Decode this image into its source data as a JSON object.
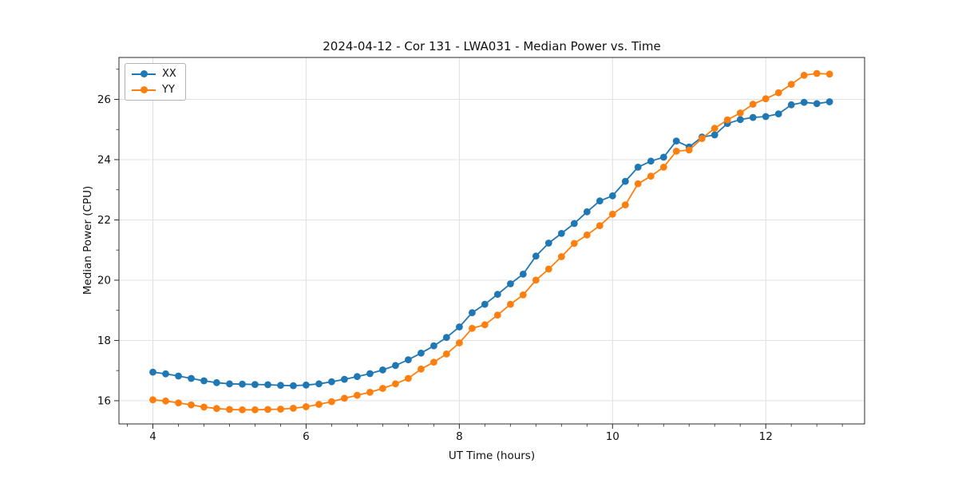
{
  "chart_data": {
    "type": "line",
    "title": "2024-04-12 - Cor 131 - LWA031 - Median Power vs. Time",
    "xlabel": "UT Time (hours)",
    "ylabel": "Median Power (CPU)",
    "xlim": [
      3.557,
      13.29
    ],
    "ylim": [
      15.23,
      27.39
    ],
    "x_major_ticks": [
      4,
      6,
      8,
      10,
      12
    ],
    "y_major_ticks": [
      16,
      18,
      20,
      22,
      24,
      26
    ],
    "x_minor_step": 0.33333,
    "y_minor_step": 1.0,
    "grid": true,
    "grid_color": "#e0e0e0",
    "spine_color": "#2b2b2b",
    "legend_position": "upper left",
    "x": [
      4.0,
      4.167,
      4.333,
      4.5,
      4.667,
      4.833,
      5.0,
      5.167,
      5.333,
      5.5,
      5.667,
      5.833,
      6.0,
      6.167,
      6.333,
      6.5,
      6.667,
      6.833,
      7.0,
      7.167,
      7.333,
      7.5,
      7.667,
      7.833,
      8.0,
      8.167,
      8.333,
      8.5,
      8.667,
      8.833,
      9.0,
      9.167,
      9.333,
      9.5,
      9.667,
      9.833,
      10.0,
      10.167,
      10.333,
      10.5,
      10.667,
      10.833,
      11.0,
      11.167,
      11.333,
      11.5,
      11.667,
      11.833,
      12.0,
      12.167,
      12.333,
      12.5,
      12.667,
      12.833
    ],
    "series": [
      {
        "name": "XX",
        "color": "#1f77b4",
        "values": [
          16.95,
          16.89,
          16.82,
          16.74,
          16.66,
          16.6,
          16.56,
          16.55,
          16.54,
          16.53,
          16.51,
          16.5,
          16.52,
          16.56,
          16.63,
          16.71,
          16.8,
          16.9,
          17.02,
          17.17,
          17.36,
          17.58,
          17.82,
          18.1,
          18.45,
          18.92,
          19.2,
          19.53,
          19.88,
          20.2,
          20.8,
          21.23,
          21.55,
          21.88,
          22.27,
          22.63,
          22.8,
          23.28,
          23.75,
          23.95,
          24.08,
          24.62,
          24.42,
          24.75,
          24.82,
          25.2,
          25.33,
          25.4,
          25.43,
          25.52,
          25.82,
          25.9,
          25.86,
          25.92
        ]
      },
      {
        "name": "YY",
        "color": "#ff7f0e",
        "values": [
          16.03,
          15.99,
          15.93,
          15.86,
          15.79,
          15.74,
          15.71,
          15.7,
          15.7,
          15.71,
          15.72,
          15.75,
          15.8,
          15.88,
          15.97,
          16.08,
          16.18,
          16.28,
          16.41,
          16.56,
          16.74,
          17.05,
          17.28,
          17.55,
          17.92,
          18.4,
          18.52,
          18.84,
          19.2,
          19.51,
          20.0,
          20.37,
          20.78,
          21.22,
          21.5,
          21.81,
          22.19,
          22.5,
          23.2,
          23.45,
          23.75,
          24.28,
          24.32,
          24.7,
          25.04,
          25.32,
          25.55,
          25.84,
          26.02,
          26.22,
          26.5,
          26.8,
          26.86,
          26.84
        ]
      }
    ]
  }
}
